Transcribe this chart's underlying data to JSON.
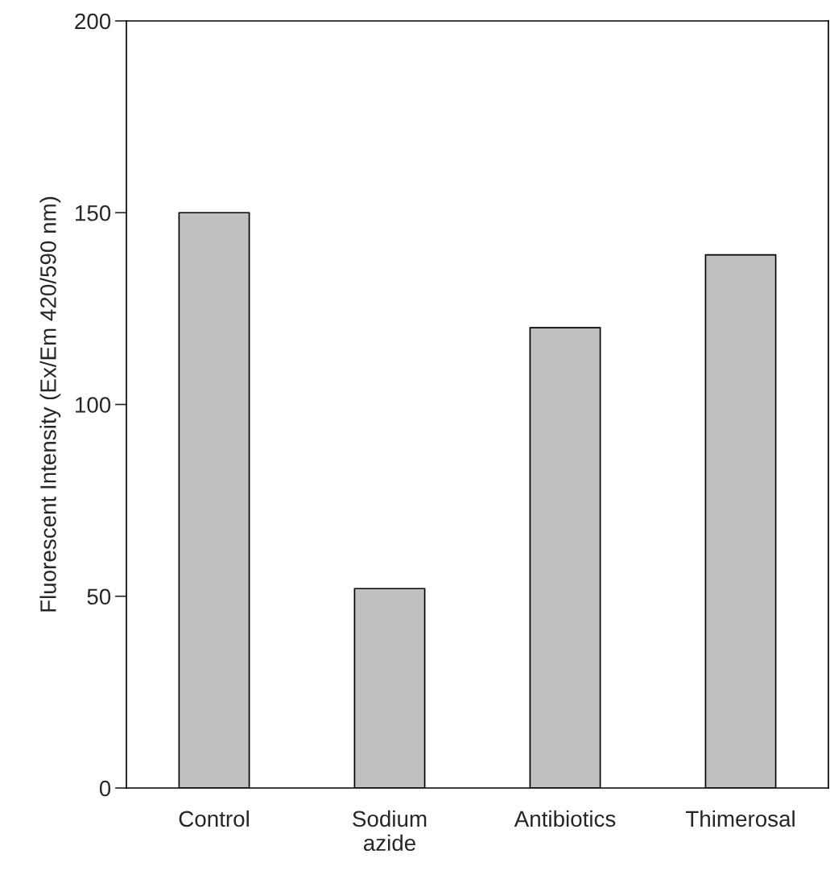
{
  "chart_data": {
    "type": "bar",
    "ylabel": "Fluorescent Intensity (Ex/Em 420/590 nm)",
    "categories": [
      "Control",
      "Sodium\nazide",
      "Antibiotics",
      "Thimerosal"
    ],
    "values": [
      150,
      52,
      120,
      139
    ],
    "color": "#c0c0c0",
    "ylim": [
      0,
      200
    ],
    "yticks": [
      0,
      50,
      100,
      150,
      200
    ],
    "grid": false,
    "legend": false
  }
}
